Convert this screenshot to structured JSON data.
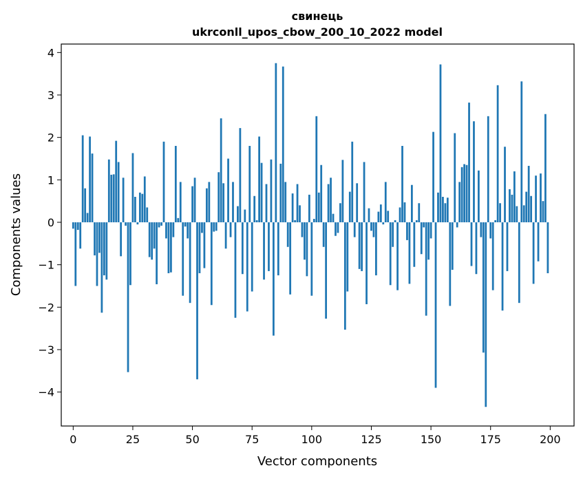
{
  "chart_data": {
    "type": "bar",
    "title": "свинець",
    "subtitle": "ukrconll_upos_cbow_200_10_2022 model",
    "xlabel": "Vector components",
    "ylabel": "Components values",
    "xlim": [
      -5,
      210
    ],
    "ylim": [
      -4.8,
      4.2
    ],
    "xticks": [
      0,
      25,
      50,
      75,
      100,
      125,
      150,
      175,
      200
    ],
    "yticks": [
      -4,
      -3,
      -2,
      -1,
      0,
      1,
      2,
      3,
      4
    ],
    "ytick_labels": [
      "−4",
      "−3",
      "−2",
      "−1",
      "0",
      "1",
      "2",
      "3",
      "4"
    ],
    "grid": false,
    "bar_color": "#1f77b4",
    "x": [
      0,
      1,
      2,
      3,
      4,
      5,
      6,
      7,
      8,
      9,
      10,
      11,
      12,
      13,
      14,
      15,
      16,
      17,
      18,
      19,
      20,
      21,
      22,
      23,
      24,
      25,
      26,
      27,
      28,
      29,
      30,
      31,
      32,
      33,
      34,
      35,
      36,
      37,
      38,
      39,
      40,
      41,
      42,
      43,
      44,
      45,
      46,
      47,
      48,
      49,
      50,
      51,
      52,
      53,
      54,
      55,
      56,
      57,
      58,
      59,
      60,
      61,
      62,
      63,
      64,
      65,
      66,
      67,
      68,
      69,
      70,
      71,
      72,
      73,
      74,
      75,
      76,
      77,
      78,
      79,
      80,
      81,
      82,
      83,
      84,
      85,
      86,
      87,
      88,
      89,
      90,
      91,
      92,
      93,
      94,
      95,
      96,
      97,
      98,
      99,
      100,
      101,
      102,
      103,
      104,
      105,
      106,
      107,
      108,
      109,
      110,
      111,
      112,
      113,
      114,
      115,
      116,
      117,
      118,
      119,
      120,
      121,
      122,
      123,
      124,
      125,
      126,
      127,
      128,
      129,
      130,
      131,
      132,
      133,
      134,
      135,
      136,
      137,
      138,
      139,
      140,
      141,
      142,
      143,
      144,
      145,
      146,
      147,
      148,
      149,
      150,
      151,
      152,
      153,
      154,
      155,
      156,
      157,
      158,
      159,
      160,
      161,
      162,
      163,
      164,
      165,
      166,
      167,
      168,
      169,
      170,
      171,
      172,
      173,
      174,
      175,
      176,
      177,
      178,
      179,
      180,
      181,
      182,
      183,
      184,
      185,
      186,
      187,
      188,
      189,
      190,
      191,
      192,
      193,
      194,
      195,
      196,
      197,
      198,
      199
    ],
    "values": [
      -0.15,
      -1.5,
      -0.18,
      -0.62,
      2.05,
      0.8,
      0.22,
      2.02,
      1.62,
      -0.78,
      -1.5,
      -0.72,
      -2.13,
      -1.25,
      -1.35,
      1.48,
      1.12,
      1.13,
      1.92,
      1.42,
      -0.8,
      1.05,
      -0.08,
      -3.53,
      -1.48,
      1.63,
      0.6,
      -0.05,
      0.7,
      0.67,
      1.08,
      0.35,
      -0.82,
      -0.88,
      -0.62,
      -1.46,
      -0.12,
      -0.08,
      1.9,
      -0.38,
      -1.2,
      -1.18,
      -0.35,
      1.8,
      0.1,
      0.95,
      -1.73,
      -0.1,
      -0.38,
      -1.9,
      0.85,
      1.05,
      -3.7,
      -1.2,
      -0.25,
      -1.08,
      0.8,
      0.95,
      -1.95,
      -0.22,
      -0.2,
      1.18,
      2.45,
      0.92,
      -0.62,
      1.5,
      -0.35,
      0.95,
      -2.25,
      0.38,
      2.22,
      -1.22,
      0.3,
      -2.1,
      1.8,
      -1.63,
      0.62,
      0.05,
      2.02,
      1.4,
      -1.35,
      0.9,
      -1.15,
      1.48,
      -2.67,
      3.75,
      -1.25,
      1.38,
      3.67,
      0.95,
      -0.58,
      -1.7,
      0.68,
      0.05,
      0.9,
      0.4,
      -0.35,
      -0.88,
      -1.27,
      0.65,
      -1.73,
      0.08,
      2.5,
      0.7,
      1.35,
      -0.58,
      -2.27,
      0.9,
      1.05,
      0.2,
      -0.32,
      -0.25,
      0.45,
      1.47,
      -2.53,
      -1.63,
      0.72,
      1.9,
      -0.35,
      0.92,
      -1.1,
      -1.15,
      1.42,
      -1.93,
      0.33,
      -0.2,
      -0.35,
      -1.25,
      0.25,
      0.42,
      -0.05,
      0.95,
      0.27,
      -1.48,
      -0.58,
      0.05,
      -1.6,
      0.35,
      1.8,
      0.47,
      -0.42,
      -1.45,
      0.88,
      -1.05,
      0.05,
      0.45,
      -0.75,
      -0.12,
      -2.2,
      -0.88,
      -0.38,
      2.13,
      -3.9,
      0.7,
      3.72,
      0.6,
      0.45,
      0.58,
      -1.97,
      -1.12,
      2.1,
      -0.12,
      0.95,
      1.3,
      1.37,
      1.35,
      2.82,
      -1.03,
      2.38,
      -1.22,
      1.22,
      -0.35,
      -3.07,
      -4.35,
      2.5,
      -0.38,
      -1.6,
      0.05,
      3.23,
      0.45,
      -2.08,
      1.78,
      -1.15,
      0.78,
      0.65,
      1.2,
      0.38,
      -1.9,
      3.32,
      0.4,
      0.72,
      1.33,
      0.62,
      -1.45,
      1.1,
      -0.92,
      1.15,
      0.5,
      2.55,
      -1.2
    ]
  }
}
